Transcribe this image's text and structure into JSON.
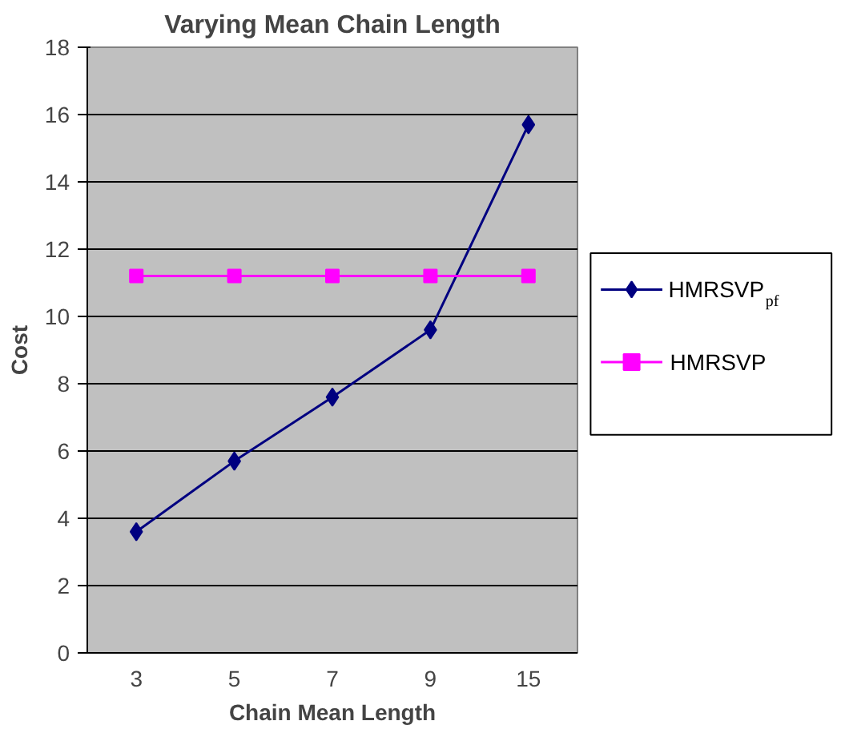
{
  "chart_data": {
    "type": "line",
    "title": "Varying Mean Chain Length",
    "xlabel": "Chain Mean Length",
    "ylabel": "Cost",
    "categories": [
      "3",
      "5",
      "7",
      "9",
      "15"
    ],
    "series": [
      {
        "name": "HMRSVP$_{pf}$",
        "color": "#000080",
        "marker": "diamond",
        "values": [
          3.6,
          5.7,
          7.6,
          9.6,
          15.7
        ]
      },
      {
        "name": "HMRSVP",
        "color": "#ff00ff",
        "marker": "square",
        "values": [
          11.2,
          11.2,
          11.2,
          11.2,
          11.2
        ]
      }
    ],
    "ylim": [
      0,
      18
    ],
    "yticks": [
      0,
      2,
      4,
      6,
      8,
      10,
      12,
      14,
      16,
      18
    ],
    "grid": "y",
    "legend": "right"
  }
}
